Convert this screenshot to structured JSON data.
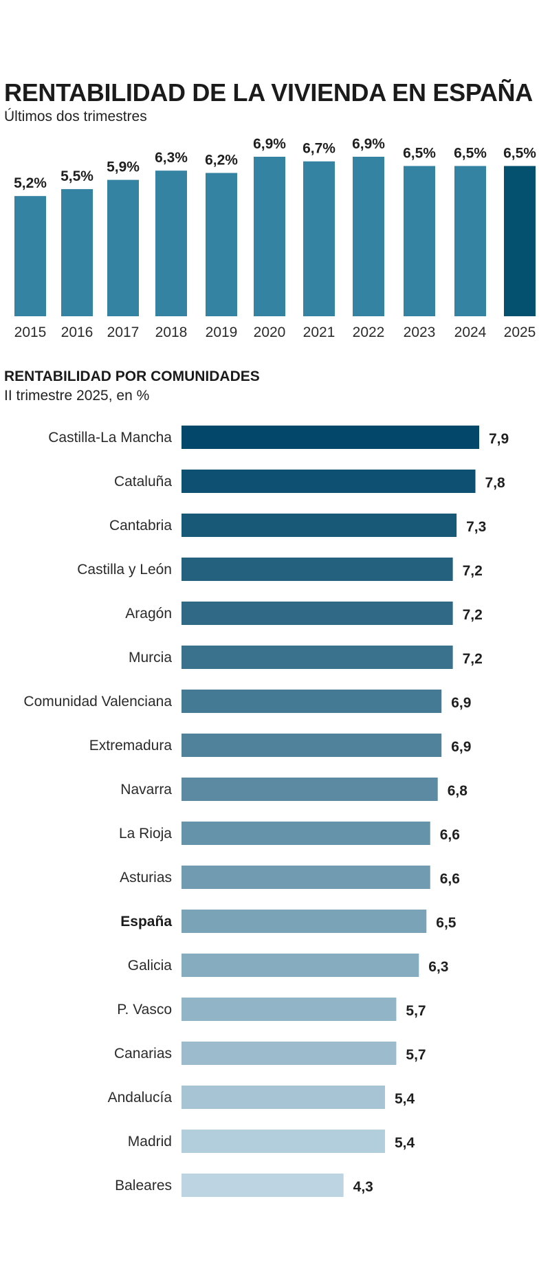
{
  "header": {
    "title": "RENTABILIDAD DE LA VIVIENDA EN ESPAÑA",
    "subtitle": "Últimos dos trimestres"
  },
  "section2": {
    "title": "RENTABILIDAD POR COMUNIDADES",
    "subtitle": "II trimestre 2025, en %"
  },
  "colors": {
    "bar_default": "#3583a3",
    "bar_highlight": "#03506f",
    "hbar_darkest": "#03486a",
    "hbar_lightest": "#bdd5e2"
  },
  "chart_data": [
    {
      "type": "bar",
      "title": "RENTABILIDAD DE LA VIVIENDA EN ESPAÑA",
      "subtitle": "Últimos dos trimestres",
      "categories": [
        "2015",
        "2016",
        "2017",
        "2018",
        "2019",
        "2020",
        "2021",
        "2022",
        "2023",
        "2024",
        "2025"
      ],
      "values": [
        5.2,
        5.5,
        5.9,
        6.3,
        6.2,
        6.9,
        6.7,
        6.9,
        6.5,
        6.5,
        6.5
      ],
      "labels": [
        "5,2%",
        "5,5%",
        "5,9%",
        "6,3%",
        "6,2%",
        "6,9%",
        "6,7%",
        "6,9%",
        "6,5%",
        "6,5%",
        "6,5%"
      ],
      "highlight_index": 10,
      "xlabel": "",
      "ylabel": "",
      "grid": false
    },
    {
      "type": "bar",
      "orientation": "horizontal",
      "title": "RENTABILIDAD POR COMUNIDADES",
      "subtitle": "II trimestre 2025, en %",
      "categories": [
        "Castilla-La Mancha",
        "Cataluña",
        "Cantabria",
        "Castilla y León",
        "Aragón",
        "Murcia",
        "Comunidad Valenciana",
        "Extremadura",
        "Navarra",
        "La Rioja",
        "Asturias",
        "España",
        "Galicia",
        "P. Vasco",
        "Canarias",
        "Andalucía",
        "Madrid",
        "Baleares"
      ],
      "values": [
        7.9,
        7.8,
        7.3,
        7.2,
        7.2,
        7.2,
        6.9,
        6.9,
        6.8,
        6.6,
        6.6,
        6.5,
        6.3,
        5.7,
        5.7,
        5.4,
        5.4,
        4.3
      ],
      "labels": [
        "7,9",
        "7,8",
        "7,3",
        "7,2",
        "7,2",
        "7,2",
        "6,9",
        "6,9",
        "6,8",
        "6,6",
        "6,6",
        "6,5",
        "6,3",
        "5,7",
        "5,7",
        "5,4",
        "5,4",
        "4,3"
      ],
      "bold_category": "España",
      "xlim": [
        0,
        7.9
      ],
      "grid": false
    }
  ]
}
